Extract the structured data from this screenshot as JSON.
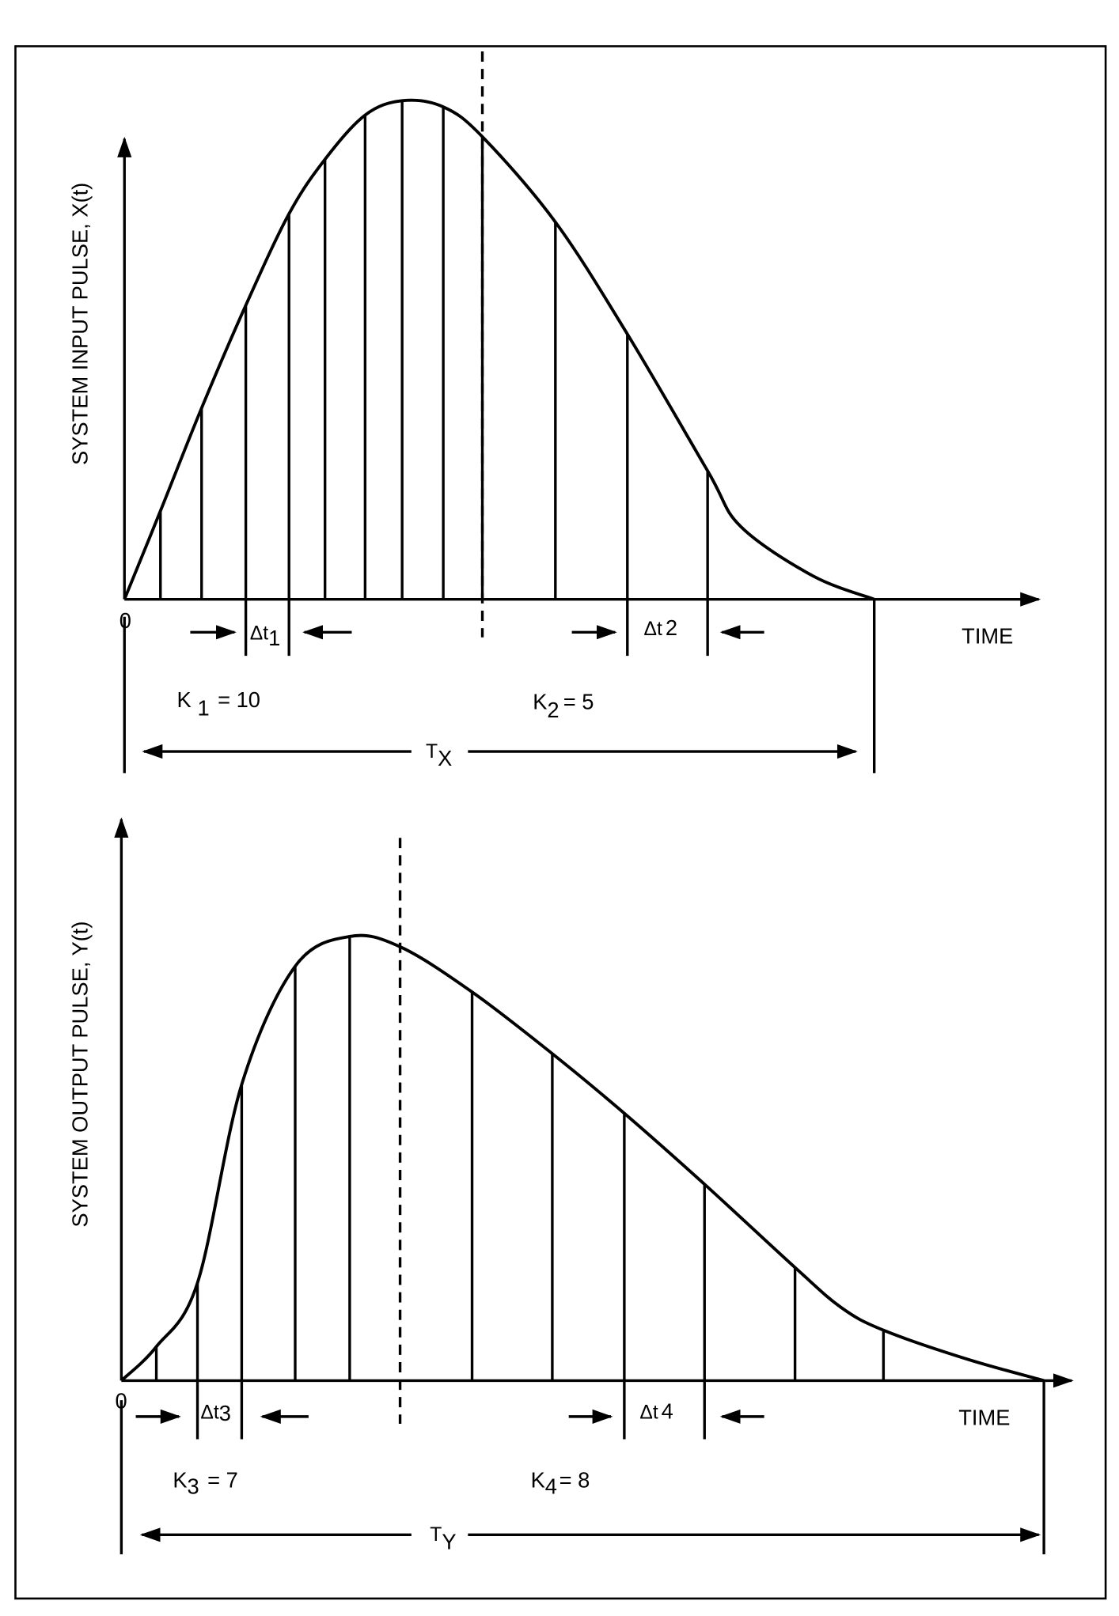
{
  "panels": [
    {
      "y_axis_label": "SYSTEM INPUT PULSE,  X(t)",
      "origin_label": "0",
      "x_axis_label": "TIME",
      "intervals": [
        {
          "symbol": "Δt",
          "subscript": "1"
        },
        {
          "symbol": "Δt",
          "subscript": "2"
        }
      ],
      "constants": [
        {
          "symbol": "K",
          "subscript": "1",
          "value": "= 10"
        },
        {
          "symbol": "K",
          "subscript": "2",
          "value": "= 5"
        }
      ],
      "duration": {
        "symbol": "T",
        "subscript": "X"
      }
    },
    {
      "y_axis_label": "SYSTEM OUTPUT PULSE,  Y(t)",
      "origin_label": "0",
      "x_axis_label": "TIME",
      "intervals": [
        {
          "symbol": "Δt",
          "subscript": "3"
        },
        {
          "symbol": "Δt",
          "subscript": "4"
        }
      ],
      "constants": [
        {
          "symbol": "K",
          "subscript": "3",
          "value": "= 7"
        },
        {
          "symbol": "K",
          "subscript": "4",
          "value": "= 8"
        }
      ],
      "duration": {
        "symbol": "T",
        "subscript": "Y"
      }
    }
  ]
}
